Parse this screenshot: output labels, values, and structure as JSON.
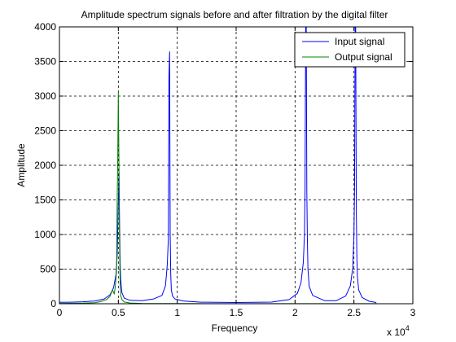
{
  "chart_data": {
    "type": "line",
    "title": "Amplitude spectrum signals before and after filtration by the digital filter",
    "xlabel": "Frequency",
    "ylabel": "Amplitude",
    "x_scale_note": "x 10",
    "x_scale_exponent": "4",
    "xlim": [
      0,
      30000
    ],
    "ylim": [
      0,
      4000
    ],
    "xticks": [
      0,
      5000,
      10000,
      15000,
      20000,
      25000,
      30000
    ],
    "xtick_labels": [
      "0",
      "0.5",
      "1",
      "1.5",
      "2",
      "2.5",
      "3"
    ],
    "yticks": [
      0,
      500,
      1000,
      1500,
      2000,
      2500,
      3000,
      3500,
      4000
    ],
    "ytick_labels": [
      "0",
      "500",
      "1000",
      "1500",
      "2000",
      "2500",
      "3000",
      "3500",
      "4000"
    ],
    "grid": true,
    "legend_position": "top-right",
    "series": [
      {
        "name": "Input signal",
        "color": "#0000ff",
        "x": [
          0,
          1000,
          2000,
          3000,
          3800,
          4300,
          4600,
          4800,
          4900,
          5000,
          5050,
          5100,
          5150,
          5200,
          5300,
          5500,
          6000,
          7000,
          8000,
          8700,
          9000,
          9150,
          9250,
          9300,
          9350,
          9400,
          9450,
          9500,
          9600,
          9800,
          10500,
          12000,
          15000,
          18000,
          19500,
          20200,
          20500,
          20700,
          20800,
          20850,
          20900,
          20950,
          21000,
          21050,
          21100,
          21200,
          21500,
          22500,
          23500,
          24300,
          24700,
          24900,
          25000,
          25050,
          25100,
          25150,
          25200,
          25250,
          25300,
          25400,
          25700,
          26300,
          26800,
          26900
        ],
        "values": [
          20,
          22,
          28,
          40,
          70,
          130,
          230,
          420,
          700,
          1450,
          1900,
          1200,
          600,
          350,
          160,
          80,
          50,
          45,
          70,
          120,
          260,
          560,
          950,
          3280,
          3640,
          1000,
          420,
          200,
          110,
          70,
          40,
          22,
          18,
          24,
          60,
          150,
          300,
          600,
          1000,
          1620,
          4000,
          4000,
          1620,
          900,
          500,
          250,
          120,
          45,
          45,
          110,
          260,
          520,
          1000,
          1650,
          4000,
          4000,
          1300,
          650,
          380,
          200,
          90,
          35,
          20,
          10
        ]
      },
      {
        "name": "Output signal",
        "color": "#008000",
        "x": [
          0,
          1000,
          2000,
          3000,
          3500,
          4000,
          4300,
          4500,
          4650,
          4750,
          4850,
          4900,
          4950,
          5000,
          5050,
          5100,
          5150,
          5200,
          5300,
          5500,
          6000,
          7000,
          8000,
          10000,
          15000,
          20000,
          25000,
          26900
        ],
        "values": [
          5,
          6,
          8,
          15,
          30,
          60,
          110,
          200,
          140,
          260,
          500,
          1500,
          2100,
          3050,
          2000,
          900,
          300,
          120,
          60,
          25,
          10,
          5,
          3,
          2,
          1,
          1,
          1,
          1
        ]
      }
    ]
  }
}
